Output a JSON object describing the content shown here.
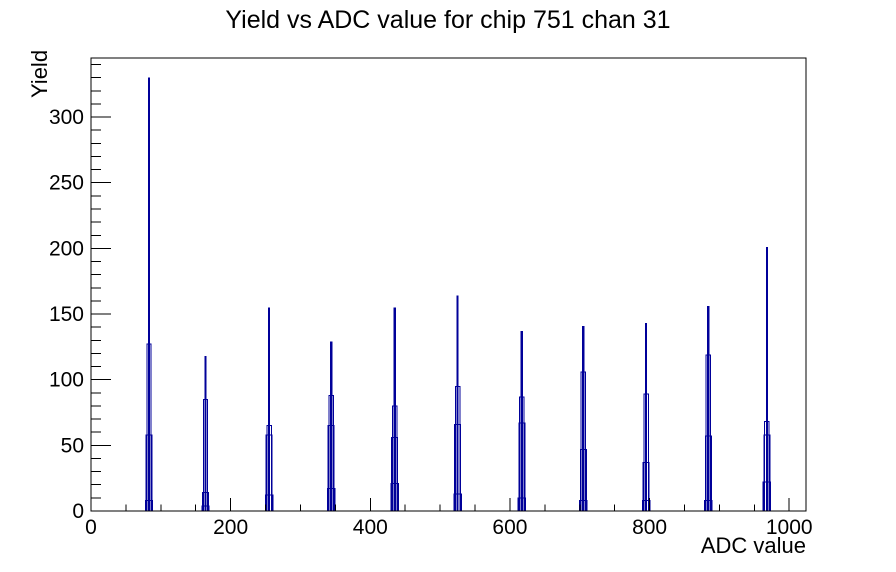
{
  "chart_data": {
    "type": "bar",
    "title": "Yield vs ADC value for chip 751 chan 31",
    "xlabel": "ADC value",
    "ylabel": "Yield",
    "xlim": [
      0,
      1024
    ],
    "ylim": [
      0,
      345
    ],
    "x_major_ticks": [
      0,
      200,
      400,
      600,
      800,
      1000
    ],
    "x_minor_step": 50,
    "y_major_ticks": [
      0,
      50,
      100,
      150,
      200,
      250,
      300
    ],
    "y_minor_step": 10,
    "grid": false,
    "legend": false,
    "line_color": "#000099",
    "frame_color": "#000000",
    "spikes": [
      {
        "adc": 83,
        "peak": 330,
        "shoulder": 127,
        "shoulder2": 58,
        "base": 8
      },
      {
        "adc": 164,
        "peak": 118,
        "shoulder": 85,
        "shoulder2": 14,
        "base": 4
      },
      {
        "adc": 255,
        "peak": 155,
        "shoulder": 65,
        "shoulder2": 58,
        "base": 12
      },
      {
        "adc": 344,
        "peak": 129,
        "shoulder": 88,
        "shoulder2": 65,
        "base": 17
      },
      {
        "adc": 435,
        "peak": 155,
        "shoulder": 80,
        "shoulder2": 56,
        "base": 21
      },
      {
        "adc": 525,
        "peak": 164,
        "shoulder": 95,
        "shoulder2": 66,
        "base": 13
      },
      {
        "adc": 617,
        "peak": 137,
        "shoulder": 87,
        "shoulder2": 67,
        "base": 10
      },
      {
        "adc": 705,
        "peak": 141,
        "shoulder": 106,
        "shoulder2": 47,
        "base": 8
      },
      {
        "adc": 795,
        "peak": 143,
        "shoulder": 89,
        "shoulder2": 37,
        "base": 8
      },
      {
        "adc": 884,
        "peak": 156,
        "shoulder": 119,
        "shoulder2": 57,
        "base": 8
      },
      {
        "adc": 968,
        "peak": 201,
        "shoulder": 68,
        "shoulder2": 58,
        "base": 22
      }
    ]
  }
}
